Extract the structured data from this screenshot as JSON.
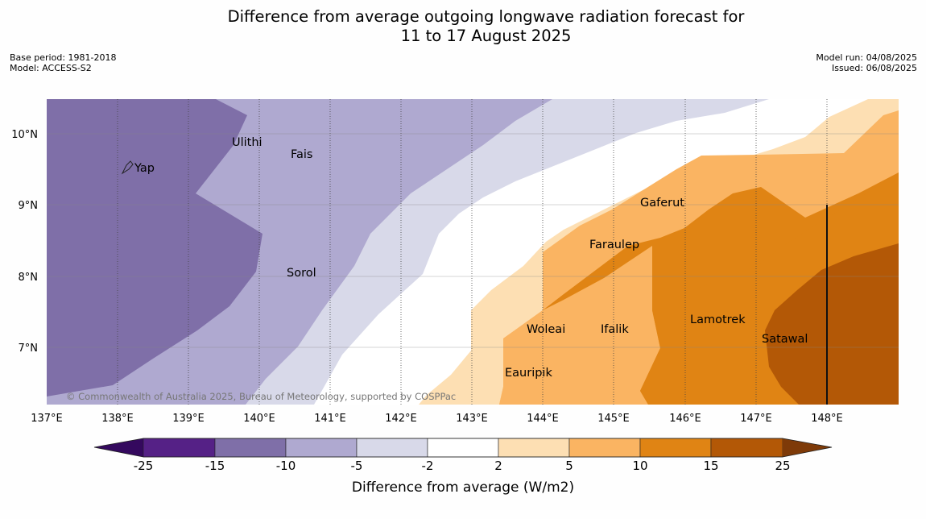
{
  "title_line1": "Difference from average outgoing longwave radiation forecast for",
  "title_line2": "11 to 17 August 2025",
  "base_period": "Base period: 1981-2018",
  "model": "Model: ACCESS-S2",
  "model_run": "Model run: 04/08/2025",
  "issued": "Issued: 06/08/2025",
  "copyright": "© Commonwealth of Australia 2025, Bureau of Meteorology, supported by COSPPac",
  "colorbar": {
    "title": "Difference from average (W/m2)",
    "ticks": [
      "-25",
      "-15",
      "-10",
      "-5",
      "-2",
      "2",
      "5",
      "10",
      "15",
      "25"
    ],
    "colors": [
      "#34095e",
      "#552186",
      "#7f6fa8",
      "#afa9d0",
      "#d8d9e9",
      "#ffffff",
      "#fddfb3",
      "#fab462",
      "#e08414",
      "#b35806",
      "#7e3a08"
    ]
  },
  "map": {
    "lon_labels": [
      "137°E",
      "138°E",
      "139°E",
      "140°E",
      "141°E",
      "142°E",
      "143°E",
      "144°E",
      "145°E",
      "146°E",
      "147°E",
      "148°E"
    ],
    "lat_labels": [
      "10°N",
      "9°N",
      "8°N",
      "7°N"
    ],
    "places": [
      "Yap",
      "Ulithi",
      "Fais",
      "Gaferut",
      "Faraulep",
      "Sorol",
      "Woleai",
      "Ifalik",
      "Lamotrek",
      "Satawal",
      "Eauripik"
    ]
  }
}
